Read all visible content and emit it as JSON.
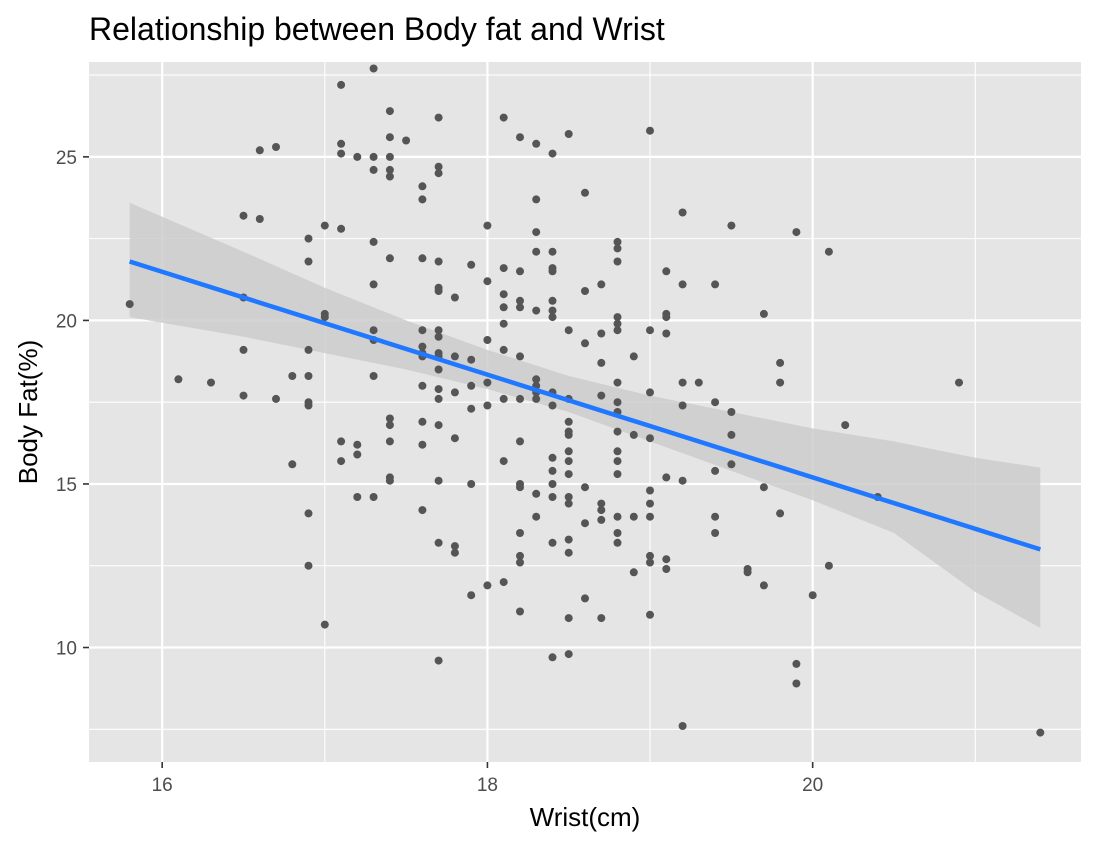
{
  "chart_data": {
    "type": "scatter",
    "title": "Relationship between Body fat and Wrist",
    "xlabel": "Wrist(cm)",
    "ylabel": "Body Fat(%)",
    "xlim": [
      15.55,
      21.65
    ],
    "ylim": [
      6.5,
      27.9
    ],
    "x_ticks": [
      16,
      18,
      20
    ],
    "y_ticks": [
      10,
      15,
      20,
      25
    ],
    "grid": true,
    "legend": "none",
    "colors": {
      "panel": "#e5e5e5",
      "grid": "#ffffff",
      "points": "#555555",
      "fit_line": "#1f78ff",
      "ribbon": "#cccccc"
    },
    "points": [
      [
        15.8,
        20.5
      ],
      [
        16.1,
        18.2
      ],
      [
        16.3,
        18.1
      ],
      [
        16.5,
        23.2
      ],
      [
        16.5,
        20.7
      ],
      [
        16.5,
        19.1
      ],
      [
        16.5,
        17.7
      ],
      [
        16.6,
        25.2
      ],
      [
        16.6,
        23.1
      ],
      [
        16.7,
        25.3
      ],
      [
        16.7,
        17.6
      ],
      [
        16.8,
        18.3
      ],
      [
        16.8,
        15.6
      ],
      [
        16.9,
        22.5
      ],
      [
        16.9,
        21.8
      ],
      [
        16.9,
        19.1
      ],
      [
        16.9,
        18.3
      ],
      [
        16.9,
        17.5
      ],
      [
        16.9,
        17.4
      ],
      [
        16.9,
        14.1
      ],
      [
        16.9,
        12.5
      ],
      [
        17.0,
        22.9
      ],
      [
        17.0,
        20.2
      ],
      [
        17.0,
        20.1
      ],
      [
        17.0,
        10.7
      ],
      [
        17.1,
        27.2
      ],
      [
        17.1,
        25.4
      ],
      [
        17.1,
        25.1
      ],
      [
        17.1,
        22.8
      ],
      [
        17.1,
        16.3
      ],
      [
        17.1,
        15.7
      ],
      [
        17.2,
        25.0
      ],
      [
        17.2,
        16.2
      ],
      [
        17.2,
        15.9
      ],
      [
        17.2,
        14.6
      ],
      [
        17.3,
        27.7
      ],
      [
        17.3,
        25.0
      ],
      [
        17.3,
        24.6
      ],
      [
        17.3,
        22.4
      ],
      [
        17.3,
        21.1
      ],
      [
        17.3,
        19.7
      ],
      [
        17.3,
        19.4
      ],
      [
        17.3,
        18.3
      ],
      [
        17.3,
        14.6
      ],
      [
        17.4,
        26.4
      ],
      [
        17.4,
        25.6
      ],
      [
        17.4,
        25.0
      ],
      [
        17.4,
        24.6
      ],
      [
        17.4,
        24.4
      ],
      [
        17.4,
        21.9
      ],
      [
        17.4,
        17.0
      ],
      [
        17.4,
        16.8
      ],
      [
        17.4,
        16.3
      ],
      [
        17.4,
        15.2
      ],
      [
        17.4,
        15.1
      ],
      [
        17.5,
        25.5
      ],
      [
        17.6,
        24.1
      ],
      [
        17.6,
        23.7
      ],
      [
        17.6,
        21.9
      ],
      [
        17.6,
        19.7
      ],
      [
        17.6,
        19.2
      ],
      [
        17.6,
        19.0
      ],
      [
        17.6,
        18.9
      ],
      [
        17.6,
        18.0
      ],
      [
        17.6,
        16.9
      ],
      [
        17.6,
        16.2
      ],
      [
        17.6,
        14.2
      ],
      [
        17.7,
        26.2
      ],
      [
        17.7,
        24.7
      ],
      [
        17.7,
        24.5
      ],
      [
        17.7,
        21.8
      ],
      [
        17.7,
        21.0
      ],
      [
        17.7,
        20.9
      ],
      [
        17.7,
        19.7
      ],
      [
        17.7,
        19.5
      ],
      [
        17.7,
        19.0
      ],
      [
        17.7,
        18.9
      ],
      [
        17.7,
        18.5
      ],
      [
        17.7,
        17.9
      ],
      [
        17.7,
        17.6
      ],
      [
        17.7,
        16.8
      ],
      [
        17.7,
        15.1
      ],
      [
        17.7,
        13.2
      ],
      [
        17.7,
        9.6
      ],
      [
        17.8,
        20.7
      ],
      [
        17.8,
        18.9
      ],
      [
        17.8,
        17.8
      ],
      [
        17.8,
        16.4
      ],
      [
        17.8,
        13.1
      ],
      [
        17.8,
        12.9
      ],
      [
        17.9,
        21.7
      ],
      [
        17.9,
        18.8
      ],
      [
        17.9,
        18.0
      ],
      [
        17.9,
        17.3
      ],
      [
        17.9,
        15.0
      ],
      [
        17.9,
        11.6
      ],
      [
        18.0,
        22.9
      ],
      [
        18.0,
        21.2
      ],
      [
        18.0,
        19.4
      ],
      [
        18.0,
        18.1
      ],
      [
        18.0,
        17.4
      ],
      [
        18.0,
        11.9
      ],
      [
        18.1,
        26.2
      ],
      [
        18.1,
        21.6
      ],
      [
        18.1,
        20.8
      ],
      [
        18.1,
        20.4
      ],
      [
        18.1,
        19.9
      ],
      [
        18.1,
        19.1
      ],
      [
        18.1,
        17.6
      ],
      [
        18.1,
        15.7
      ],
      [
        18.1,
        12.0
      ],
      [
        18.2,
        25.6
      ],
      [
        18.2,
        21.5
      ],
      [
        18.2,
        20.6
      ],
      [
        18.2,
        20.4
      ],
      [
        18.2,
        18.9
      ],
      [
        18.2,
        17.6
      ],
      [
        18.2,
        16.3
      ],
      [
        18.2,
        15.0
      ],
      [
        18.2,
        14.9
      ],
      [
        18.2,
        13.5
      ],
      [
        18.2,
        12.8
      ],
      [
        18.2,
        12.6
      ],
      [
        18.2,
        11.1
      ],
      [
        18.3,
        25.4
      ],
      [
        18.3,
        23.7
      ],
      [
        18.3,
        22.7
      ],
      [
        18.3,
        22.1
      ],
      [
        18.3,
        20.3
      ],
      [
        18.3,
        18.2
      ],
      [
        18.3,
        18.0
      ],
      [
        18.3,
        17.8
      ],
      [
        18.3,
        17.6
      ],
      [
        18.3,
        14.7
      ],
      [
        18.3,
        14.0
      ],
      [
        18.4,
        25.1
      ],
      [
        18.4,
        22.1
      ],
      [
        18.4,
        21.6
      ],
      [
        18.4,
        21.5
      ],
      [
        18.4,
        20.6
      ],
      [
        18.4,
        20.3
      ],
      [
        18.4,
        20.1
      ],
      [
        18.4,
        17.8
      ],
      [
        18.4,
        17.4
      ],
      [
        18.4,
        15.8
      ],
      [
        18.4,
        15.4
      ],
      [
        18.4,
        15.0
      ],
      [
        18.4,
        14.6
      ],
      [
        18.4,
        13.2
      ],
      [
        18.4,
        9.7
      ],
      [
        18.5,
        25.7
      ],
      [
        18.5,
        19.7
      ],
      [
        18.5,
        17.6
      ],
      [
        18.5,
        16.9
      ],
      [
        18.5,
        16.6
      ],
      [
        18.5,
        16.5
      ],
      [
        18.5,
        16.0
      ],
      [
        18.5,
        15.7
      ],
      [
        18.5,
        15.3
      ],
      [
        18.5,
        14.6
      ],
      [
        18.5,
        14.4
      ],
      [
        18.5,
        13.3
      ],
      [
        18.5,
        12.9
      ],
      [
        18.5,
        10.9
      ],
      [
        18.5,
        9.8
      ],
      [
        18.6,
        23.9
      ],
      [
        18.6,
        20.9
      ],
      [
        18.6,
        19.3
      ],
      [
        18.6,
        14.9
      ],
      [
        18.6,
        13.8
      ],
      [
        18.6,
        11.5
      ],
      [
        18.7,
        21.1
      ],
      [
        18.7,
        19.6
      ],
      [
        18.7,
        18.7
      ],
      [
        18.7,
        17.7
      ],
      [
        18.7,
        14.4
      ],
      [
        18.7,
        14.2
      ],
      [
        18.7,
        13.9
      ],
      [
        18.7,
        10.9
      ],
      [
        18.8,
        22.4
      ],
      [
        18.8,
        22.2
      ],
      [
        18.8,
        21.8
      ],
      [
        18.8,
        20.1
      ],
      [
        18.8,
        19.9
      ],
      [
        18.8,
        19.7
      ],
      [
        18.8,
        18.1
      ],
      [
        18.8,
        17.5
      ],
      [
        18.8,
        17.2
      ],
      [
        18.8,
        16.6
      ],
      [
        18.8,
        16.0
      ],
      [
        18.8,
        15.7
      ],
      [
        18.8,
        15.3
      ],
      [
        18.8,
        14.0
      ],
      [
        18.8,
        13.5
      ],
      [
        18.8,
        13.2
      ],
      [
        18.9,
        18.9
      ],
      [
        18.9,
        16.5
      ],
      [
        18.9,
        14.0
      ],
      [
        18.9,
        12.3
      ],
      [
        19.0,
        25.8
      ],
      [
        19.0,
        19.7
      ],
      [
        19.0,
        17.8
      ],
      [
        19.0,
        16.4
      ],
      [
        19.0,
        14.8
      ],
      [
        19.0,
        14.4
      ],
      [
        19.0,
        14.0
      ],
      [
        19.0,
        12.8
      ],
      [
        19.0,
        12.6
      ],
      [
        19.0,
        11.0
      ],
      [
        19.1,
        21.5
      ],
      [
        19.1,
        20.2
      ],
      [
        19.1,
        20.1
      ],
      [
        19.1,
        19.6
      ],
      [
        19.1,
        15.2
      ],
      [
        19.1,
        12.7
      ],
      [
        19.1,
        12.4
      ],
      [
        19.2,
        23.3
      ],
      [
        19.2,
        21.1
      ],
      [
        19.2,
        18.1
      ],
      [
        19.2,
        17.4
      ],
      [
        19.2,
        15.1
      ],
      [
        19.2,
        7.6
      ],
      [
        19.3,
        18.1
      ],
      [
        19.4,
        21.1
      ],
      [
        19.4,
        17.5
      ],
      [
        19.4,
        15.4
      ],
      [
        19.4,
        14.0
      ],
      [
        19.4,
        13.5
      ],
      [
        19.5,
        22.9
      ],
      [
        19.5,
        17.2
      ],
      [
        19.5,
        16.5
      ],
      [
        19.5,
        15.6
      ],
      [
        19.6,
        12.4
      ],
      [
        19.6,
        12.3
      ],
      [
        19.7,
        20.2
      ],
      [
        19.7,
        14.9
      ],
      [
        19.7,
        11.9
      ],
      [
        19.8,
        18.7
      ],
      [
        19.8,
        18.1
      ],
      [
        19.8,
        14.1
      ],
      [
        19.9,
        22.7
      ],
      [
        19.9,
        9.5
      ],
      [
        19.9,
        8.9
      ],
      [
        20.0,
        11.6
      ],
      [
        20.1,
        22.1
      ],
      [
        20.1,
        12.5
      ],
      [
        20.2,
        16.8
      ],
      [
        20.4,
        14.6
      ],
      [
        20.9,
        18.1
      ],
      [
        21.4,
        7.4
      ]
    ],
    "fit_line": {
      "x": [
        15.8,
        21.4
      ],
      "y": [
        21.8,
        13.0
      ]
    },
    "confidence_band": {
      "x": [
        15.8,
        16.5,
        17.0,
        17.5,
        18.0,
        18.5,
        19.0,
        19.5,
        20.0,
        20.5,
        21.0,
        21.4
      ],
      "upper": [
        23.6,
        22.1,
        21.0,
        20.0,
        19.1,
        18.3,
        17.7,
        17.2,
        16.7,
        16.3,
        15.8,
        15.5
      ],
      "lower": [
        20.1,
        19.5,
        19.0,
        18.5,
        17.9,
        17.2,
        16.3,
        15.4,
        14.5,
        13.5,
        11.7,
        10.6
      ]
    }
  }
}
